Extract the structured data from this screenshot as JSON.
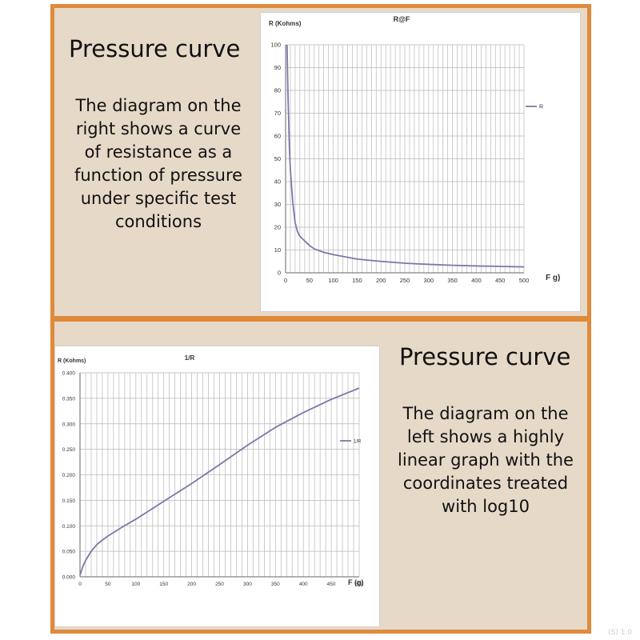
{
  "panels": {
    "top": {
      "heading": "Pressure curve",
      "lines": [
        "The diagram on the",
        "right shows a curve",
        "of resistance as a",
        "function of pressure",
        "under specific test",
        "conditions"
      ]
    },
    "bottom": {
      "heading": "Pressure curve",
      "lines": [
        "The diagram on the",
        "left shows a highly",
        "linear graph with the",
        "coordinates treated",
        "with log10"
      ]
    }
  },
  "watermark": "(S) 1.0",
  "colors": {
    "panel_border": "#e08a3c",
    "panel_bg": "#e6d9c8",
    "series_line": "#7b78a8",
    "grid": "#b8b8b8"
  },
  "chart_data": [
    {
      "type": "line",
      "title": "R@F",
      "ylabel": "R (Kohms)",
      "xlabel": "F g)",
      "xlim": [
        0,
        500
      ],
      "ylim": [
        0,
        100
      ],
      "xticks": [
        "0",
        "50",
        "100",
        "150",
        "200",
        "250",
        "300",
        "350",
        "400",
        "450",
        "500"
      ],
      "yticks": [
        "0",
        "10",
        "20",
        "30",
        "40",
        "50",
        "60",
        "70",
        "80",
        "90",
        "100"
      ],
      "grid": true,
      "legend_position": "right",
      "series": [
        {
          "name": "R",
          "x": [
            3,
            5,
            8,
            10,
            15,
            20,
            25,
            30,
            40,
            50,
            60,
            80,
            100,
            150,
            200,
            250,
            300,
            350,
            400,
            450,
            500
          ],
          "y": [
            100,
            78,
            55,
            45,
            31,
            22,
            18,
            16,
            14,
            12,
            10.5,
            9,
            8,
            6,
            5,
            4.2,
            3.7,
            3.3,
            3.0,
            2.8,
            2.6
          ]
        }
      ]
    },
    {
      "type": "line",
      "title": "1/R",
      "ylabel": "R (Kohms)",
      "xlabel": "F (g)",
      "xlim": [
        0,
        500
      ],
      "ylim": [
        0,
        0.4
      ],
      "xticks": [
        "0",
        "50",
        "100",
        "150",
        "200",
        "250",
        "300",
        "350",
        "400",
        "450",
        "500"
      ],
      "yticks": [
        "0.000",
        "0.050",
        "0.100",
        "0.150",
        "0.200",
        "0.250",
        "0.300",
        "0.350",
        "0.400"
      ],
      "grid": true,
      "legend_position": "right",
      "series": [
        {
          "name": "1/R",
          "x": [
            0,
            5,
            10,
            20,
            30,
            40,
            50,
            75,
            100,
            150,
            200,
            250,
            300,
            350,
            400,
            450,
            500
          ],
          "y": [
            0.003,
            0.02,
            0.032,
            0.05,
            0.063,
            0.072,
            0.08,
            0.097,
            0.113,
            0.148,
            0.183,
            0.22,
            0.258,
            0.293,
            0.322,
            0.348,
            0.37
          ]
        }
      ]
    }
  ]
}
